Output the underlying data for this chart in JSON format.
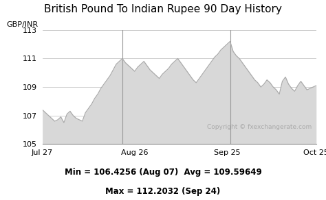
{
  "title": "British Pound To Indian Rupee 90 Day History",
  "ylabel": "GBP/INR",
  "yticks": [
    105,
    107,
    109,
    111,
    113
  ],
  "xtick_labels": [
    "Jul 27",
    "Aug 26",
    "Sep 25",
    "Oct 25"
  ],
  "ylim": [
    105,
    113
  ],
  "line_color": "#aaaaaa",
  "fill_color": "#d8d8d8",
  "vline_color": "#999999",
  "copyright_text": "Copyright © fxexchangerate.com",
  "stats_line1": "Min = 106.4256 (Aug 07)  Avg = 109.59649",
  "stats_line2": "Max = 112.2032 (Sep 24)",
  "title_fontsize": 11,
  "label_fontsize": 8,
  "stats_fontsize": 8.5,
  "background_color": "#ffffff",
  "x_values": [
    0,
    1,
    2,
    3,
    4,
    5,
    6,
    7,
    8,
    9,
    10,
    11,
    12,
    13,
    14,
    15,
    16,
    17,
    18,
    19,
    20,
    21,
    22,
    23,
    24,
    25,
    26,
    27,
    28,
    29,
    30,
    31,
    32,
    33,
    34,
    35,
    36,
    37,
    38,
    39,
    40,
    41,
    42,
    43,
    44,
    45,
    46,
    47,
    48,
    49,
    50,
    51,
    52,
    53,
    54,
    55,
    56,
    57,
    58,
    59,
    60,
    61,
    62,
    63,
    64,
    65,
    66,
    67,
    68,
    69,
    70,
    71,
    72,
    73,
    74,
    75,
    76,
    77,
    78,
    79,
    80,
    81,
    82,
    83,
    84,
    85,
    86,
    87,
    88,
    89
  ],
  "y_values": [
    107.4,
    107.2,
    107.0,
    106.8,
    106.6,
    106.7,
    106.9,
    106.5,
    107.1,
    107.3,
    107.0,
    106.8,
    106.7,
    106.6,
    107.2,
    107.5,
    107.8,
    108.2,
    108.5,
    108.9,
    109.2,
    109.5,
    109.8,
    110.2,
    110.6,
    110.8,
    111.0,
    110.7,
    110.5,
    110.3,
    110.1,
    110.4,
    110.6,
    110.8,
    110.5,
    110.2,
    110.0,
    109.8,
    109.6,
    109.9,
    110.1,
    110.3,
    110.6,
    110.8,
    111.0,
    110.7,
    110.4,
    110.1,
    109.8,
    109.5,
    109.3,
    109.6,
    109.9,
    110.2,
    110.5,
    110.8,
    111.1,
    111.3,
    111.6,
    111.8,
    112.0,
    112.2,
    111.5,
    111.2,
    111.0,
    110.7,
    110.4,
    110.1,
    109.8,
    109.5,
    109.3,
    109.0,
    109.2,
    109.5,
    109.3,
    109.0,
    108.8,
    108.5,
    109.4,
    109.7,
    109.2,
    108.9,
    108.7,
    109.1,
    109.4,
    109.1,
    108.8,
    108.9,
    109.0,
    109.1
  ],
  "vline_x_positions": [
    26,
    61
  ],
  "xtick_x_positions": [
    0,
    30,
    60,
    89
  ]
}
